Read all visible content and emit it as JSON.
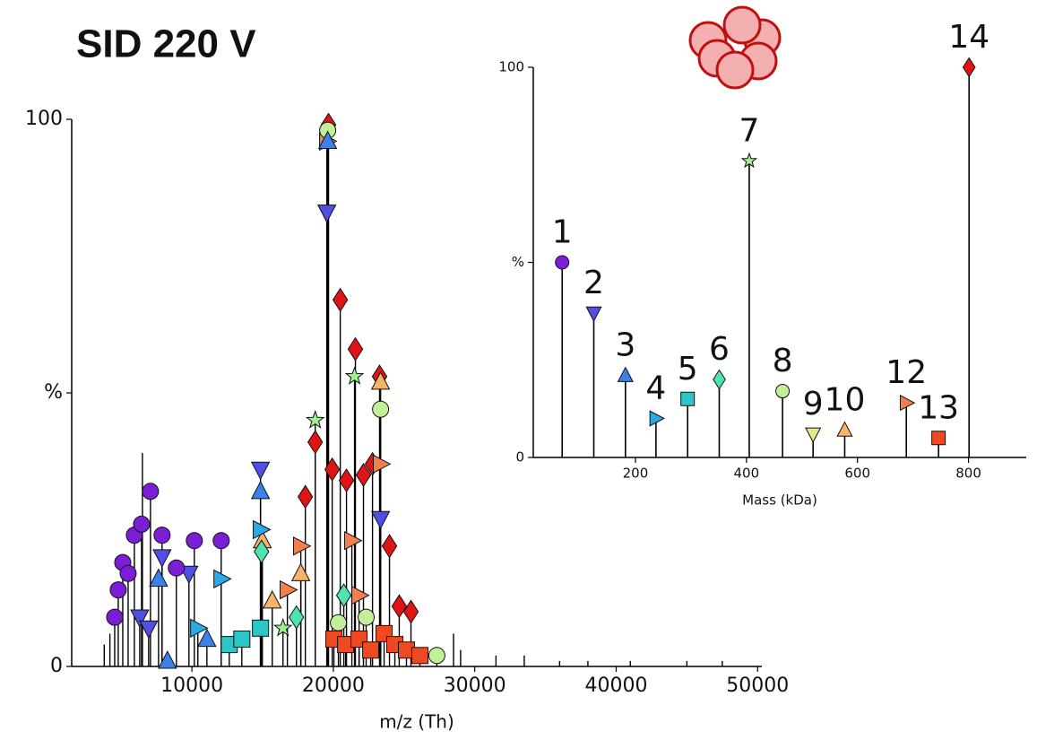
{
  "chart_data": [
    {
      "type": "stem",
      "title": "SID 220 V",
      "xlabel": "m/z (Th)",
      "xlim": [
        1500,
        50300
      ],
      "xticks": [
        10000,
        20000,
        30000,
        40000,
        50000
      ],
      "ylim": [
        0,
        100
      ],
      "yticks": [
        0,
        {
          "value": 50,
          "label": "%"
        },
        100
      ],
      "x": [
        19660,
        20490,
        21560,
        23270,
        19920,
        20930,
        22130,
        22770,
        18720,
        18020,
        23970,
        24660,
        25490,
        20040,
        20870,
        21820,
        22640,
        23590,
        24350,
        25170,
        26120,
        19540,
        21310,
        21820,
        23340,
        17700,
        16750,
        23340,
        14980,
        15680,
        17700,
        19600,
        23340,
        20360,
        22320,
        27320,
        18720,
        21500,
        16440,
        14920,
        17390,
        20740,
        12640,
        13530,
        14850,
        12070,
        14850,
        10420,
        19600,
        14850,
        7640,
        8270,
        11060,
        19540,
        14850,
        23340,
        9790,
        7890,
        6310,
        6940,
        4540,
        4790,
        5110,
        5490,
        5930,
        6440,
        7070,
        7890,
        8900,
        10170,
        12070
      ],
      "values": [
        99,
        67,
        58,
        53,
        36,
        34,
        35,
        37,
        41,
        31,
        22,
        11,
        10,
        5,
        4,
        5,
        3,
        6,
        4,
        3,
        2,
        96,
        23,
        13,
        37,
        22,
        14,
        52,
        23,
        12,
        17,
        98,
        47,
        8,
        9,
        2,
        45,
        53,
        7,
        21,
        9,
        13,
        4,
        5,
        7,
        16,
        25,
        7,
        96,
        32,
        16,
        1,
        5,
        83,
        36,
        27,
        17,
        20,
        9,
        7,
        9,
        14,
        19,
        17,
        24,
        26,
        32,
        24,
        18,
        23,
        23
      ],
      "colors": [
        "#e01414",
        "#e01414",
        "#e01414",
        "#e01414",
        "#e01414",
        "#e01414",
        "#e01414",
        "#e01414",
        "#e01414",
        "#e01414",
        "#e01414",
        "#e01414",
        "#e01414",
        "#ee4a22",
        "#ee4a22",
        "#ee4a22",
        "#ee4a22",
        "#ee4a22",
        "#ee4a22",
        "#ee4a22",
        "#ee4a22",
        "#f27f4c",
        "#f27f4c",
        "#f27f4c",
        "#f27f4c",
        "#f27f4c",
        "#f27f4c",
        "#f5b468",
        "#f5b468",
        "#f5b468",
        "#f5b468",
        "#c2f09a",
        "#c2f09a",
        "#c2f09a",
        "#c2f09a",
        "#c2f09a",
        "#9ef28e",
        "#9ef28e",
        "#9ef28e",
        "#4fe3b0",
        "#4fe3b0",
        "#4fe3b0",
        "#2cc6c6",
        "#2cc6c6",
        "#2cc6c6",
        "#29a9e6",
        "#29a9e6",
        "#29a9e6",
        "#3b82e8",
        "#3b82e8",
        "#3b82e8",
        "#3b82e8",
        "#3b82e8",
        "#4f4fe6",
        "#4f4fe6",
        "#4f4fe6",
        "#4f4fe6",
        "#4f4fe6",
        "#4f4fe6",
        "#4f4fe6",
        "#7a1fd6",
        "#7a1fd6",
        "#7a1fd6",
        "#7a1fd6",
        "#7a1fd6",
        "#7a1fd6",
        "#7a1fd6",
        "#7a1fd6",
        "#7a1fd6",
        "#7a1fd6",
        "#7a1fd6"
      ],
      "markers": [
        "diamond",
        "diamond",
        "diamond",
        "diamond",
        "diamond",
        "diamond",
        "diamond",
        "diamond",
        "diamond",
        "diamond",
        "diamond",
        "diamond",
        "diamond",
        "square",
        "square",
        "square",
        "square",
        "square",
        "square",
        "square",
        "square",
        "tri-right",
        "tri-right",
        "tri-right",
        "tri-right",
        "tri-right",
        "tri-right",
        "tri-up",
        "tri-up",
        "tri-up",
        "tri-up",
        "circle",
        "circle",
        "circle",
        "circle",
        "circle",
        "star",
        "star",
        "star",
        "diamond",
        "diamond",
        "diamond",
        "square",
        "square",
        "square",
        "tri-right",
        "tri-right",
        "tri-right",
        "tri-up",
        "tri-up",
        "tri-up",
        "tri-up",
        "tri-up",
        "tri-down",
        "tri-down",
        "tri-down",
        "tri-down",
        "tri-down",
        "tri-down",
        "tri-down",
        "circle",
        "circle",
        "circle",
        "circle",
        "circle",
        "circle",
        "circle",
        "circle",
        "circle",
        "circle",
        "circle"
      ],
      "peak_x": [
        3800,
        4200,
        6500,
        28500,
        29000,
        31500,
        33500,
        36000,
        38000,
        41000,
        45000,
        47500
      ],
      "peak_values": [
        4,
        6,
        39,
        6,
        3,
        2,
        2,
        1,
        1,
        1,
        1,
        1
      ]
    },
    {
      "type": "stem",
      "xlabel": "Mass (kDa)",
      "xlim": [
        16,
        904
      ],
      "xticks": [
        200,
        400,
        600,
        800
      ],
      "ylim": [
        0,
        100
      ],
      "yticks": [
        0,
        {
          "value": 50,
          "label": "%"
        },
        100
      ],
      "x": [
        68,
        125,
        182,
        237,
        294,
        351,
        405,
        465,
        520,
        577,
        688,
        746,
        801
      ],
      "values": [
        50,
        37,
        21,
        10,
        15,
        20,
        76,
        17,
        6,
        7,
        14,
        5,
        100
      ],
      "point_labels": [
        "1",
        "2",
        "3",
        "4",
        "5",
        "6",
        "7",
        "8",
        "9",
        "10",
        "12",
        "13",
        "14"
      ],
      "colors": [
        "#7a1fd6",
        "#4f4fe6",
        "#3b82e8",
        "#29a9e6",
        "#2cc6c6",
        "#4fe3b0",
        "#9ef28e",
        "#c2f09a",
        "#e6e68a",
        "#f5b468",
        "#f27f4c",
        "#ee4a22",
        "#e01414"
      ],
      "markers": [
        "circle",
        "tri-down",
        "tri-up",
        "tri-right",
        "square",
        "diamond",
        "star",
        "circle",
        "tri-down",
        "tri-up",
        "tri-right",
        "square",
        "diamond"
      ]
    }
  ]
}
